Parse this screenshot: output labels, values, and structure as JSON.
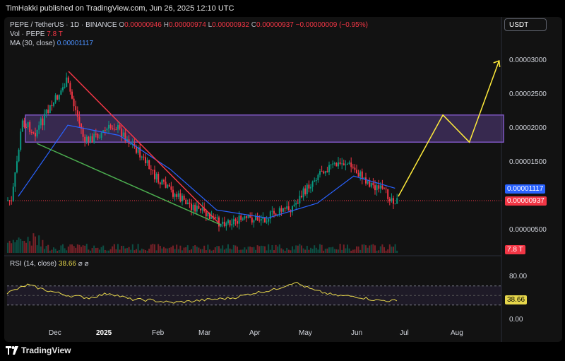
{
  "header": {
    "published": "TimHakki published on TradingView.com, Jun 26, 2025 12:10 UTC"
  },
  "legend": {
    "symbol": "PEPE / TetherUS · 1D · BINANCE",
    "o_label": "O",
    "o": "0.00000946",
    "h_label": "H",
    "h": "0.00000974",
    "l_label": "L",
    "l": "0.00000932",
    "c_label": "C",
    "c": "0.00000937",
    "change": "−0.00000009 (−0.95%)",
    "vol_label": "Vol · PEPE",
    "vol": "7.8 T",
    "ma_label": "MA (30, close)",
    "ma": "0.00001117",
    "rsi_label": "RSI (14, close)",
    "rsi": "38.66",
    "eye1": "⌀",
    "eye2": "⌀"
  },
  "currency_button": "USDT",
  "price_axis": {
    "ticks": [
      "0.00003000",
      "0.00002500",
      "0.00002000",
      "0.00001500",
      "0.00000500"
    ],
    "ma_tag": "0.00001117",
    "price_tag": "0.00000937",
    "vol_tag": "7.8 T"
  },
  "rsi_axis": {
    "ticks": [
      "80.00",
      "0.00"
    ],
    "rsi_tag": "38.66"
  },
  "time_axis": [
    "Dec",
    "2025",
    "Feb",
    "Mar",
    "Apr",
    "May",
    "Jun",
    "Jul",
    "Aug"
  ],
  "footer": {
    "brand": "TradingView"
  },
  "colors": {
    "up": "#089981",
    "down": "#f23645",
    "ma": "#2962ff",
    "zone": "#7e57c2",
    "projection": "#ffeb3b",
    "wedge_top": "#f23645",
    "wedge_bottom": "#4caf50",
    "rsi": "#e6d64b",
    "rsi_band": "#7e57c2"
  },
  "chart_data": {
    "type": "candlestick",
    "series_price_path": [
      {
        "x": "2024-11-05",
        "y": 8.2e-06
      },
      {
        "x": "2024-11-12",
        "y": 2.1e-05
      },
      {
        "x": "2024-11-20",
        "y": 1.95e-05
      },
      {
        "x": "2024-12-09",
        "y": 2.7e-05
      },
      {
        "x": "2024-12-20",
        "y": 1.8e-05
      },
      {
        "x": "2025-01-07",
        "y": 2.05e-05
      },
      {
        "x": "2025-01-20",
        "y": 1.7e-05
      },
      {
        "x": "2025-02-03",
        "y": 1.2e-05
      },
      {
        "x": "2025-02-15",
        "y": 9.8e-06
      },
      {
        "x": "2025-03-10",
        "y": 6.2e-06
      },
      {
        "x": "2025-04-07",
        "y": 6.8e-06
      },
      {
        "x": "2025-04-25",
        "y": 8.5e-06
      },
      {
        "x": "2025-05-12",
        "y": 1.4e-05
      },
      {
        "x": "2025-05-27",
        "y": 1.5e-05
      },
      {
        "x": "2025-06-10",
        "y": 1.2e-05
      },
      {
        "x": "2025-06-26",
        "y": 9.4e-06
      }
    ],
    "ma30_path": [
      {
        "x": "2024-11-10",
        "y": 1e-05
      },
      {
        "x": "2024-12-10",
        "y": 2.05e-05
      },
      {
        "x": "2025-01-10",
        "y": 1.9e-05
      },
      {
        "x": "2025-02-10",
        "y": 1.4e-05
      },
      {
        "x": "2025-03-10",
        "y": 8e-06
      },
      {
        "x": "2025-04-10",
        "y": 6.8e-06
      },
      {
        "x": "2025-05-10",
        "y": 9e-06
      },
      {
        "x": "2025-06-01",
        "y": 1.3e-05
      },
      {
        "x": "2025-06-26",
        "y": 1.12e-05
      }
    ],
    "demand_zone": {
      "from": 1.8e-05,
      "to": 2.2e-05
    },
    "projection": [
      {
        "x": "2025-06-28",
        "y": 1e-05
      },
      {
        "x": "2025-07-25",
        "y": 2.2e-05
      },
      {
        "x": "2025-08-10",
        "y": 1.8e-05
      },
      {
        "x": "2025-08-28",
        "y": 3e-05
      }
    ],
    "rsi_path": [
      55,
      72,
      60,
      50,
      45,
      55,
      42,
      40,
      35,
      38,
      42,
      45,
      55,
      62,
      78,
      60,
      50,
      48,
      40,
      38.66
    ],
    "rsi_bands": [
      70,
      30
    ],
    "ylim": [
      4.5e-06,
      3.15e-05
    ]
  }
}
